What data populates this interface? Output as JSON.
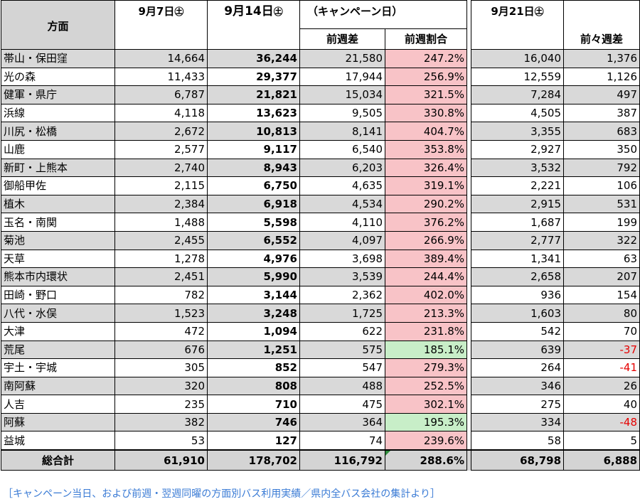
{
  "header": {
    "area_label": "方面",
    "date1": "9月7日",
    "date1_suffix": "㊏",
    "date2": "9月14日",
    "date2_suffix": "㊏",
    "campaign_label": "（キャンペーン日）",
    "diff_label": "前週差",
    "ratio_label": "前週割合",
    "date3": "9月21日",
    "date3_suffix": "㊏",
    "diff2_label": "前々週差"
  },
  "rows": [
    {
      "name": "帯山・保田窪",
      "w7": "14,664",
      "w14": "36,244",
      "diff": "21,580",
      "ratio": "247.2%",
      "ratio_color": "red",
      "w21": "16,040",
      "d2": "1,376",
      "d2_neg": false
    },
    {
      "name": "光の森",
      "w7": "11,433",
      "w14": "29,377",
      "diff": "17,944",
      "ratio": "256.9%",
      "ratio_color": "red",
      "w21": "12,559",
      "d2": "1,126",
      "d2_neg": false
    },
    {
      "name": "健軍・県庁",
      "w7": "6,787",
      "w14": "21,821",
      "diff": "15,034",
      "ratio": "321.5%",
      "ratio_color": "red",
      "w21": "7,284",
      "d2": "497",
      "d2_neg": false
    },
    {
      "name": "浜線",
      "w7": "4,118",
      "w14": "13,623",
      "diff": "9,505",
      "ratio": "330.8%",
      "ratio_color": "red",
      "w21": "4,505",
      "d2": "387",
      "d2_neg": false
    },
    {
      "name": "川尻・松橋",
      "w7": "2,672",
      "w14": "10,813",
      "diff": "8,141",
      "ratio": "404.7%",
      "ratio_color": "red",
      "w21": "3,355",
      "d2": "683",
      "d2_neg": false
    },
    {
      "name": "山鹿",
      "w7": "2,577",
      "w14": "9,117",
      "diff": "6,540",
      "ratio": "353.8%",
      "ratio_color": "red",
      "w21": "2,927",
      "d2": "350",
      "d2_neg": false
    },
    {
      "name": "新町・上熊本",
      "w7": "2,740",
      "w14": "8,943",
      "diff": "6,203",
      "ratio": "326.4%",
      "ratio_color": "red",
      "w21": "3,532",
      "d2": "792",
      "d2_neg": false
    },
    {
      "name": "御船甲佐",
      "w7": "2,115",
      "w14": "6,750",
      "diff": "4,635",
      "ratio": "319.1%",
      "ratio_color": "red",
      "w21": "2,221",
      "d2": "106",
      "d2_neg": false
    },
    {
      "name": "植木",
      "w7": "2,384",
      "w14": "6,918",
      "diff": "4,534",
      "ratio": "290.2%",
      "ratio_color": "red",
      "w21": "2,915",
      "d2": "531",
      "d2_neg": false
    },
    {
      "name": "玉名・南関",
      "w7": "1,488",
      "w14": "5,598",
      "diff": "4,110",
      "ratio": "376.2%",
      "ratio_color": "red",
      "w21": "1,687",
      "d2": "199",
      "d2_neg": false
    },
    {
      "name": "菊池",
      "w7": "2,455",
      "w14": "6,552",
      "diff": "4,097",
      "ratio": "266.9%",
      "ratio_color": "red",
      "w21": "2,777",
      "d2": "322",
      "d2_neg": false
    },
    {
      "name": "天草",
      "w7": "1,278",
      "w14": "4,976",
      "diff": "3,698",
      "ratio": "389.4%",
      "ratio_color": "red",
      "w21": "1,341",
      "d2": "63",
      "d2_neg": false
    },
    {
      "name": "熊本市内環状",
      "w7": "2,451",
      "w14": "5,990",
      "diff": "3,539",
      "ratio": "244.4%",
      "ratio_color": "red",
      "w21": "2,658",
      "d2": "207",
      "d2_neg": false
    },
    {
      "name": "田崎・野口",
      "w7": "782",
      "w14": "3,144",
      "diff": "2,362",
      "ratio": "402.0%",
      "ratio_color": "red",
      "w21": "936",
      "d2": "154",
      "d2_neg": false
    },
    {
      "name": "八代・水俣",
      "w7": "1,523",
      "w14": "3,248",
      "diff": "1,725",
      "ratio": "213.3%",
      "ratio_color": "red",
      "w21": "1,603",
      "d2": "80",
      "d2_neg": false
    },
    {
      "name": "大津",
      "w7": "472",
      "w14": "1,094",
      "diff": "622",
      "ratio": "231.8%",
      "ratio_color": "red",
      "w21": "542",
      "d2": "70",
      "d2_neg": false
    },
    {
      "name": "荒尾",
      "w7": "676",
      "w14": "1,251",
      "diff": "575",
      "ratio": "185.1%",
      "ratio_color": "green",
      "w21": "639",
      "d2": "-37",
      "d2_neg": true
    },
    {
      "name": "宇土・宇城",
      "w7": "305",
      "w14": "852",
      "diff": "547",
      "ratio": "279.3%",
      "ratio_color": "red",
      "w21": "264",
      "d2": "-41",
      "d2_neg": true
    },
    {
      "name": "南阿蘇",
      "w7": "320",
      "w14": "808",
      "diff": "488",
      "ratio": "252.5%",
      "ratio_color": "red",
      "w21": "346",
      "d2": "26",
      "d2_neg": false
    },
    {
      "name": "人吉",
      "w7": "235",
      "w14": "710",
      "diff": "475",
      "ratio": "302.1%",
      "ratio_color": "red",
      "w21": "275",
      "d2": "40",
      "d2_neg": false
    },
    {
      "name": "阿蘇",
      "w7": "382",
      "w14": "746",
      "diff": "364",
      "ratio": "195.3%",
      "ratio_color": "green",
      "w21": "334",
      "d2": "-48",
      "d2_neg": true
    },
    {
      "name": "益城",
      "w7": "53",
      "w14": "127",
      "diff": "74",
      "ratio": "239.6%",
      "ratio_color": "red",
      "w21": "58",
      "d2": "5",
      "d2_neg": false
    }
  ],
  "total": {
    "name": "総合計",
    "w7": "61,910",
    "w14": "178,702",
    "diff": "116,792",
    "ratio": "288.6%",
    "w21": "68,798",
    "d2": "6,888"
  },
  "footnote": "［キャンペーン当日、および前週・翌週同曜の方面別バス利用実績／県内全バス会社の集計より］",
  "colors": {
    "ratio_red": "#f8c3c7",
    "ratio_green": "#c8eec8",
    "row_shade": "#d9d9d9",
    "negative": "#e60000",
    "footnote": "#3a7bd5",
    "cell_marker": "#2e8b3a"
  }
}
